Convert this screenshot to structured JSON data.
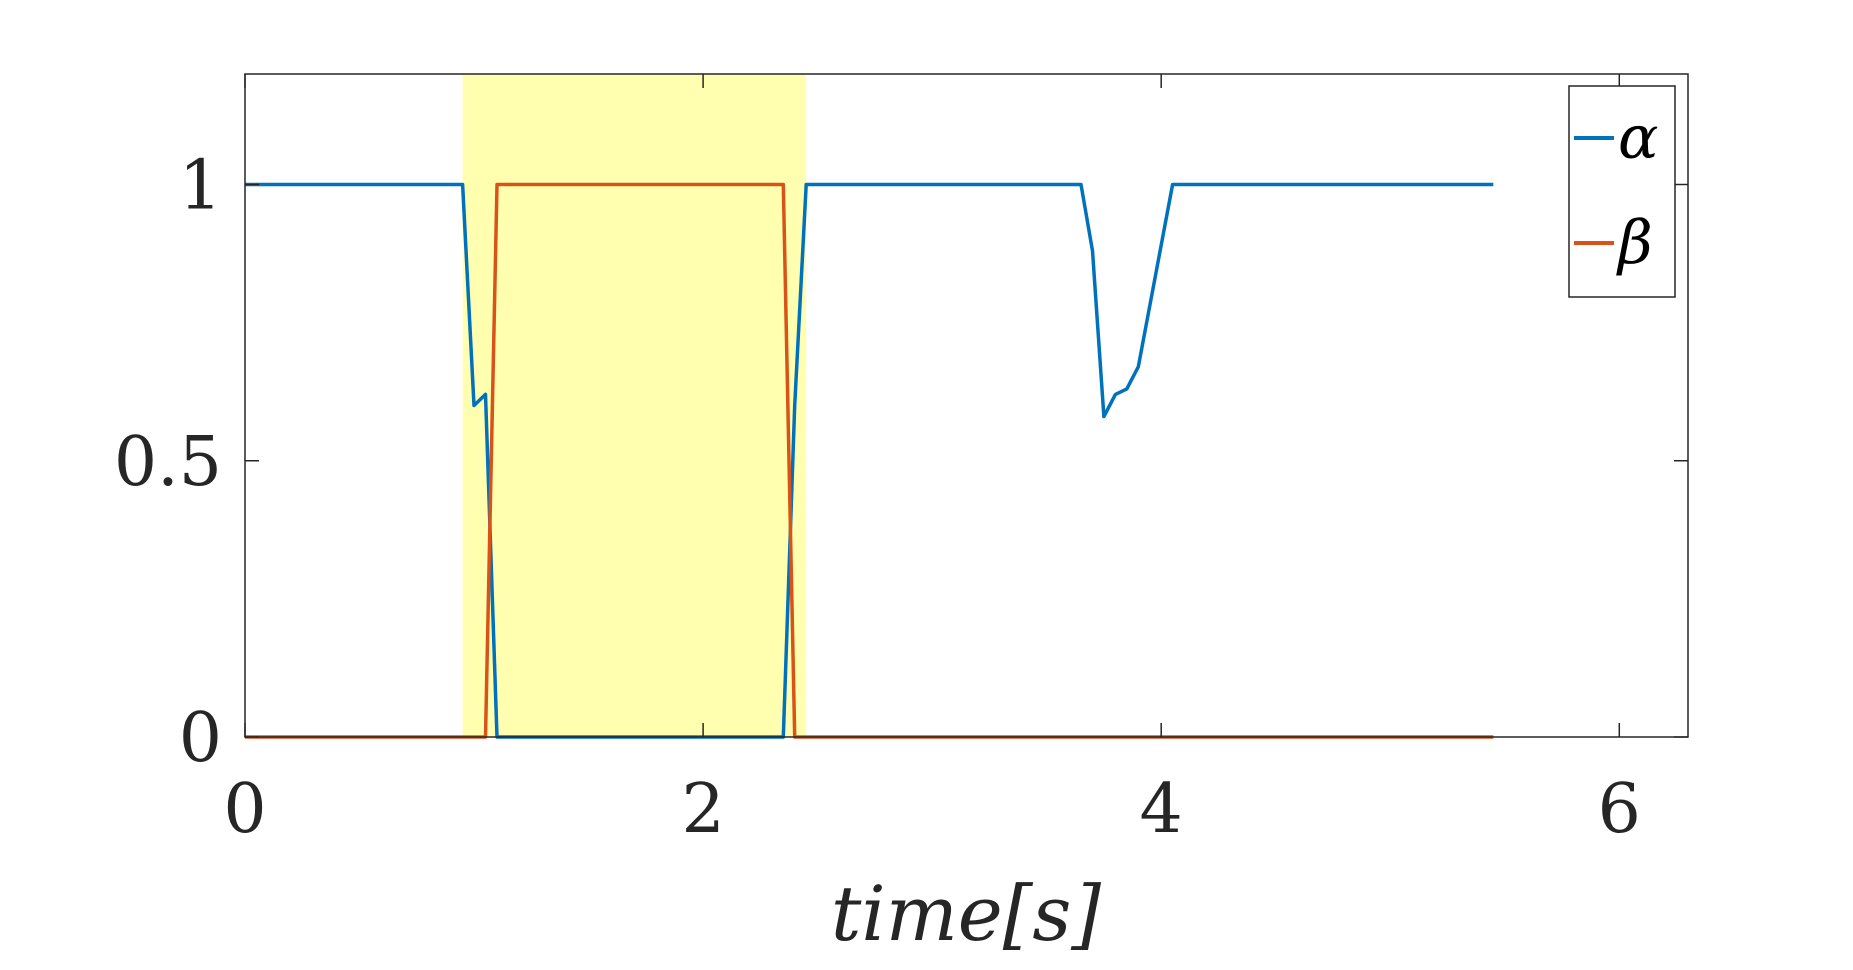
{
  "chart_data": {
    "type": "line",
    "xlabel": "time[s]",
    "ylabel": "",
    "xlim": [
      0,
      6.3
    ],
    "ylim": [
      0,
      1.2
    ],
    "x_ticks": [
      0,
      2,
      4,
      6
    ],
    "y_ticks": [
      0,
      0.5,
      1
    ],
    "x_tick_labels": [
      "0",
      "2",
      "4",
      "6"
    ],
    "y_tick_labels": [
      "0",
      "0.5",
      "1"
    ],
    "grid": false,
    "legend_position": "top-right",
    "highlight_region": {
      "x_start": 0.95,
      "x_end": 2.45,
      "color": "#ffff99"
    },
    "series": [
      {
        "name": "α",
        "color": "#0072BD",
        "x": [
          0,
          0.95,
          1.0,
          1.05,
          1.1,
          1.15,
          1.2,
          2.35,
          2.4,
          2.45,
          3.65,
          3.7,
          3.75,
          3.8,
          3.85,
          3.9,
          4.05,
          5.45
        ],
        "y": [
          1,
          1,
          0.6,
          0.62,
          0.0,
          0.0,
          0.0,
          0.0,
          0.6,
          1,
          1,
          0.88,
          0.58,
          0.62,
          0.63,
          0.67,
          1,
          1
        ]
      },
      {
        "name": "β",
        "color": "#D95319",
        "x": [
          0,
          1.05,
          1.1,
          2.35,
          2.4,
          5.45
        ],
        "y": [
          0,
          0,
          1,
          1,
          0,
          0
        ]
      }
    ]
  }
}
